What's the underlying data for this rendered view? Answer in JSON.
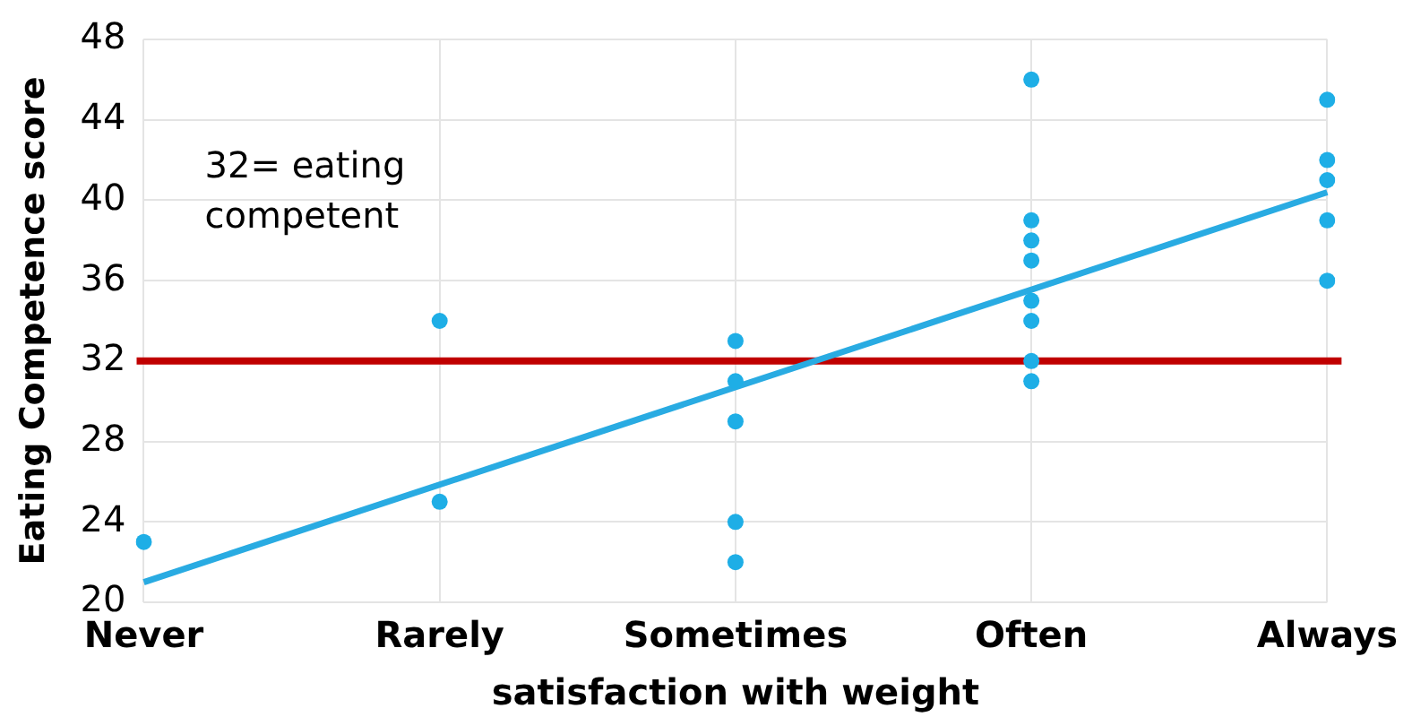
{
  "chart_data": {
    "type": "scatter",
    "xlabel": "satisfaction with weight",
    "ylabel": "Eating Competence score",
    "categories": [
      "Never",
      "Rarely",
      "Sometimes",
      "Often",
      "Always"
    ],
    "series": [
      {
        "color": "#1eaee6",
        "marker": "circle",
        "x": [
          "Never",
          "Rarely",
          "Rarely",
          "Sometimes",
          "Sometimes",
          "Sometimes",
          "Sometimes",
          "Sometimes",
          "Often",
          "Often",
          "Often",
          "Often",
          "Often",
          "Often",
          "Often",
          "Often",
          "Always",
          "Always",
          "Always",
          "Always",
          "Always"
        ],
        "values": [
          23,
          34,
          25,
          33,
          31,
          29,
          24,
          22,
          46,
          39,
          38,
          37,
          35,
          34,
          32,
          31,
          45,
          42,
          41,
          39,
          36
        ]
      },
      {
        "type": "line",
        "marker": "none",
        "color": "#29abe2",
        "x": [
          "Never",
          "Always"
        ],
        "values": [
          21,
          40.4
        ]
      }
    ],
    "ylim": [
      20,
      48
    ],
    "yticks": [
      20,
      24,
      28,
      32,
      36,
      40,
      44,
      48
    ],
    "ref_lines": [
      {
        "axis": "y",
        "value": 32,
        "color": "#c00000"
      }
    ],
    "annotations": [
      "32= eating competent"
    ],
    "grid": true,
    "legend": false,
    "line_style": "solid"
  }
}
